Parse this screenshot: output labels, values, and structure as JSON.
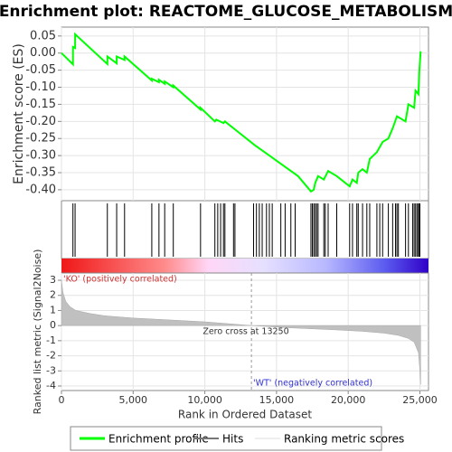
{
  "chart_data": [
    {
      "type": "line",
      "title": "Enrichment plot: REACTOME_GLUCOSE_METABOLISM",
      "ylabel": "Enrichment score (ES)",
      "xlim": [
        0,
        25600
      ],
      "ylim": [
        -0.432,
        0.076
      ],
      "yticks": [
        0.05,
        {
          "value": 0,
          "label": "0.00"
        },
        -0.05,
        {
          "value": -0.1,
          "label": "-0.10"
        },
        -0.15,
        {
          "value": -0.2,
          "label": "-0.20"
        },
        -0.25,
        {
          "value": -0.3,
          "label": "-0.30"
        },
        -0.35,
        {
          "value": -0.4,
          "label": "-0.40"
        }
      ],
      "grid": true,
      "series": [
        {
          "name": "Enrichment profile",
          "color": "#00ff00",
          "x": [
            0,
            800,
            800,
            950,
            950,
            3200,
            3200,
            3850,
            3850,
            4400,
            4400,
            6300,
            6300,
            6800,
            6800,
            7200,
            7200,
            7800,
            7800,
            9700,
            9700,
            10700,
            10800,
            11300,
            11400,
            12000,
            13500,
            14500,
            15500,
            16500,
            17400,
            17600,
            17700,
            17900,
            18300,
            18600,
            19200,
            20100,
            20300,
            20600,
            20700,
            21000,
            21300,
            21500,
            22000,
            22400,
            22800,
            23100,
            23400,
            24000,
            24200,
            24600,
            24700,
            24900,
            24950,
            25050
          ],
          "values": [
            0,
            -0.033,
            0.018,
            0.015,
            0.055,
            -0.032,
            -0.01,
            -0.03,
            -0.01,
            -0.02,
            -0.01,
            -0.08,
            -0.075,
            -0.085,
            -0.078,
            -0.09,
            -0.083,
            -0.1,
            -0.095,
            -0.165,
            -0.16,
            -0.2,
            -0.195,
            -0.205,
            -0.2,
            -0.22,
            -0.27,
            -0.3,
            -0.33,
            -0.36,
            -0.405,
            -0.4,
            -0.38,
            -0.36,
            -0.37,
            -0.345,
            -0.36,
            -0.39,
            -0.37,
            -0.38,
            -0.35,
            -0.34,
            -0.35,
            -0.31,
            -0.29,
            -0.26,
            -0.25,
            -0.22,
            -0.185,
            -0.2,
            -0.15,
            -0.16,
            -0.11,
            -0.12,
            -0.06,
            0.005
          ]
        }
      ]
    },
    {
      "type": "hits",
      "series": [
        {
          "name": "Hits",
          "color": "#000000",
          "x": [
            800,
            950,
            3200,
            3850,
            4400,
            6300,
            6800,
            7200,
            7800,
            9700,
            10700,
            10900,
            11100,
            11300,
            11400,
            12000,
            12100,
            13400,
            13600,
            13800,
            14000,
            14300,
            14500,
            14700,
            15300,
            15600,
            16000,
            16300,
            17400,
            17500,
            17600,
            17700,
            17800,
            17900,
            18300,
            18400,
            18600,
            19200,
            20100,
            20300,
            20600,
            20700,
            21000,
            21300,
            21500,
            22000,
            22200,
            22400,
            22800,
            23100,
            23300,
            23400,
            23500,
            24000,
            24200,
            24500,
            24600,
            24700,
            24800,
            24900,
            24950,
            25000
          ]
        }
      ]
    },
    {
      "type": "area",
      "ylabel": "Ranked list metric (Signal2Noise)",
      "xlabel": "Rank in Ordered Dataset",
      "xlim": [
        0,
        25600
      ],
      "ylim": [
        -4.3,
        3.48
      ],
      "xticks": [
        0,
        {
          "value": 5000,
          "label": "5,000"
        },
        {
          "value": 10000,
          "label": "10,000"
        },
        {
          "value": 15000,
          "label": "15,000"
        },
        {
          "value": 20000,
          "label": "20,000"
        },
        {
          "value": 25000,
          "label": "25,000"
        }
      ],
      "yticks": [
        3,
        2,
        1,
        0,
        -1,
        -2,
        -3,
        -4
      ],
      "grid": true,
      "zero_cross": 13250,
      "annotations": [
        "'KO' (positively correlated)",
        "Zero cross at 13250",
        "'WT' (negatively correlated)"
      ],
      "series": [
        {
          "name": "Ranking metric scores",
          "color": "#c0c0c0",
          "x": [
            0,
            100,
            300,
            600,
            1000,
            2000,
            3000,
            5000,
            8000,
            10000,
            13250,
            16000,
            19000,
            21000,
            22500,
            23500,
            24200,
            24600,
            24900,
            25000,
            25050
          ],
          "values": [
            3.0,
            2.2,
            1.6,
            1.25,
            1.0,
            0.8,
            0.65,
            0.5,
            0.35,
            0.25,
            0,
            -0.15,
            -0.28,
            -0.38,
            -0.5,
            -0.65,
            -0.85,
            -1.1,
            -1.8,
            -3.0,
            -3.9
          ]
        }
      ]
    }
  ]
}
